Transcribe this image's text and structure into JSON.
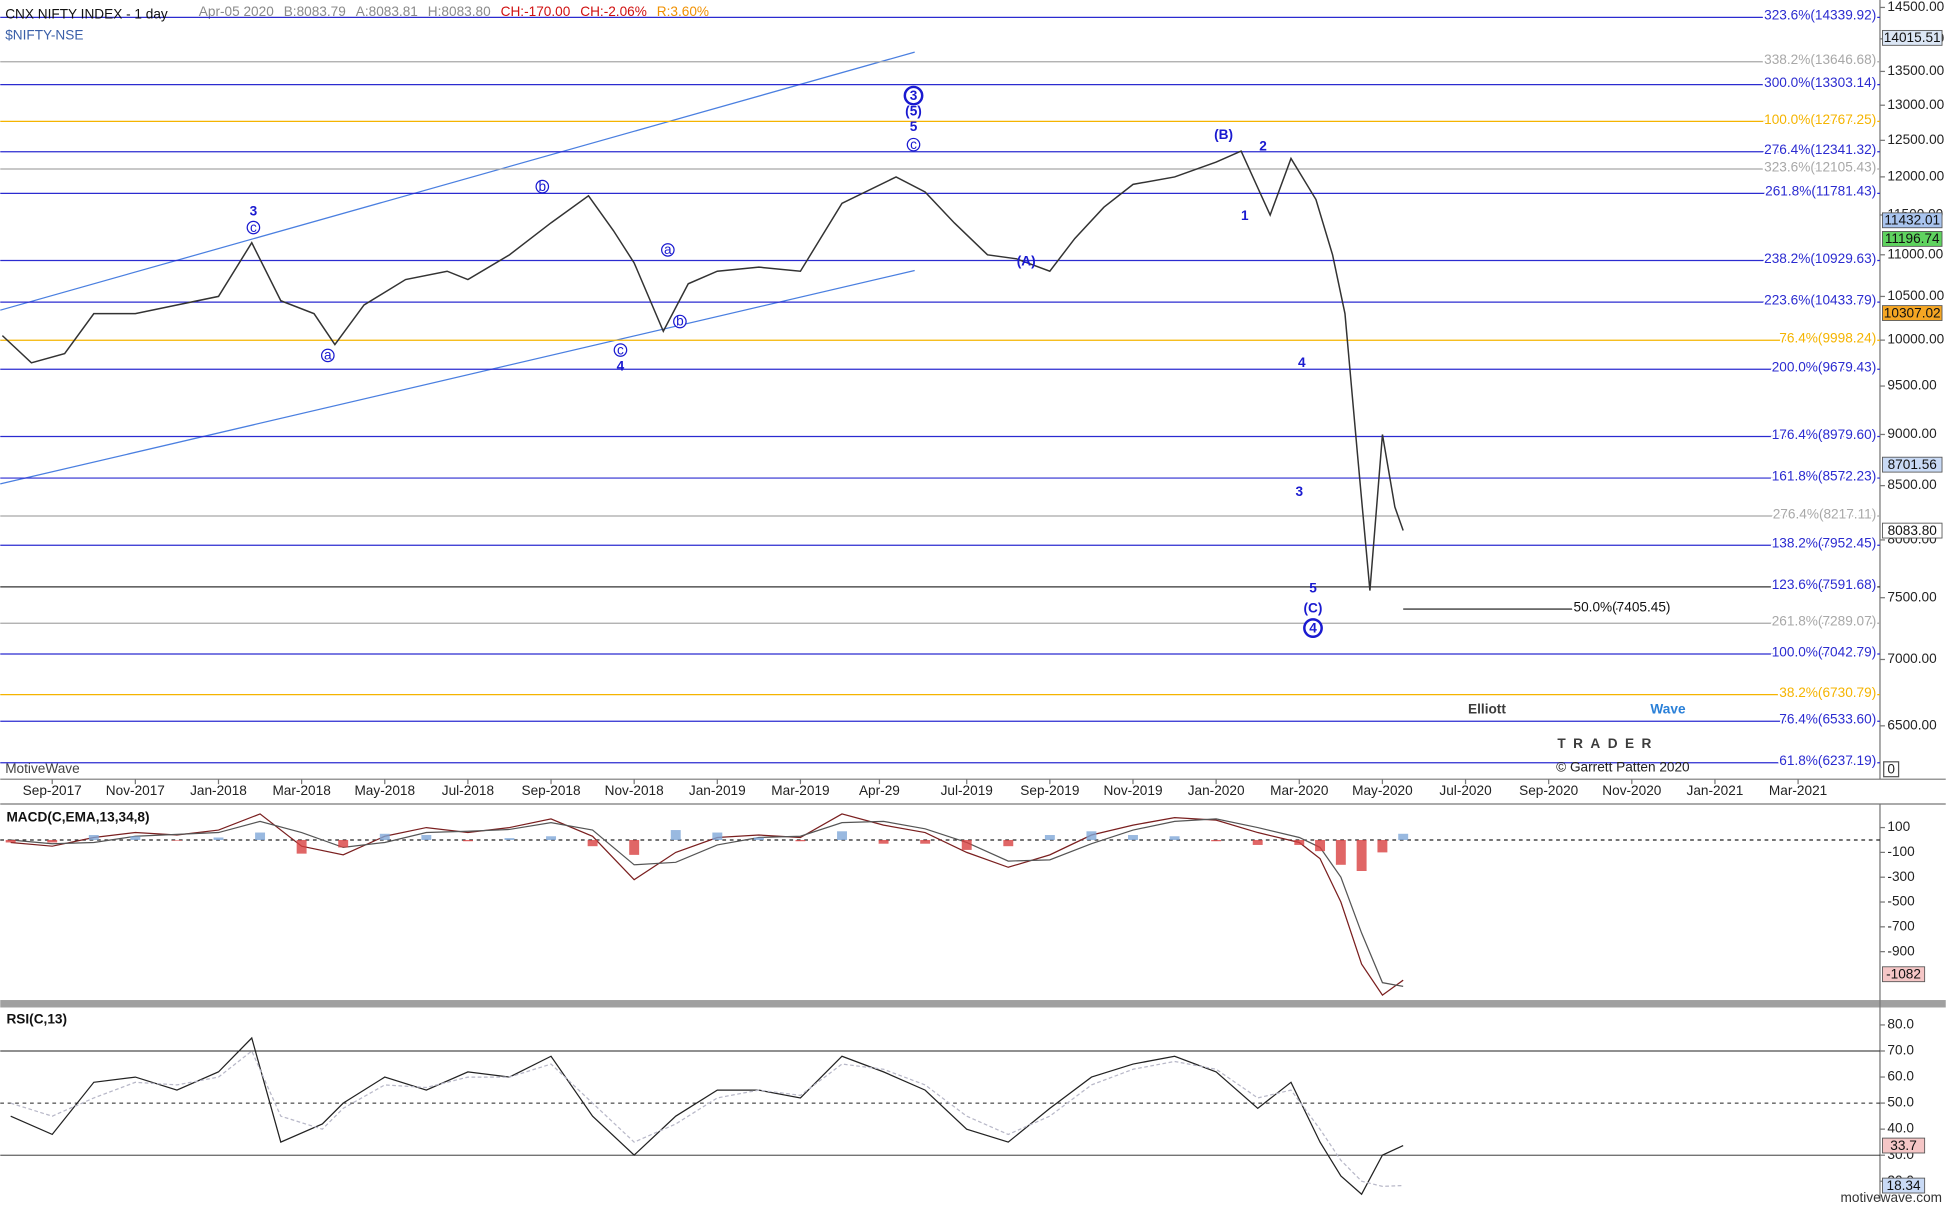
{
  "chart_data": [
    {
      "type": "line",
      "title": "CNX NIFTY INDEX - 1 day",
      "subtitle": "$NIFTY-NSE",
      "quote": [
        {
          "text": "Apr-05 2020",
          "color": "#8a8a8a"
        },
        {
          "text": "B:8083.79",
          "color": "#8a8a8a"
        },
        {
          "text": "A:8083.81",
          "color": "#8a8a8a"
        },
        {
          "text": "H:8083.80",
          "color": "#8a8a8a"
        },
        {
          "text": "CH:-170.00",
          "color": "#d01010"
        },
        {
          "text": "CH:-2.06%",
          "color": "#d01010"
        },
        {
          "text": "R:3.60%",
          "color": "#f09000"
        }
      ],
      "log_scale": true,
      "xlim": [
        6.75,
        51.97
      ],
      "ylim": [
        6124,
        14621
      ],
      "xticks": [
        {
          "value": 8,
          "label": "Sep-2017"
        },
        {
          "value": 10,
          "label": "Nov-2017"
        },
        {
          "value": 12,
          "label": "Jan-2018"
        },
        {
          "value": 14,
          "label": "Mar-2018"
        },
        {
          "value": 16,
          "label": "May-2018"
        },
        {
          "value": 18,
          "label": "Jul-2018"
        },
        {
          "value": 20,
          "label": "Sep-2018"
        },
        {
          "value": 22,
          "label": "Nov-2018"
        },
        {
          "value": 24,
          "label": "Jan-2019"
        },
        {
          "value": 26,
          "label": "Mar-2019"
        },
        {
          "value": 27.9,
          "label": "Apr-29"
        },
        {
          "value": 30,
          "label": "Jul-2019"
        },
        {
          "value": 32,
          "label": "Sep-2019"
        },
        {
          "value": 34,
          "label": "Nov-2019"
        },
        {
          "value": 36,
          "label": "Jan-2020"
        },
        {
          "value": 38,
          "label": "Mar-2020"
        },
        {
          "value": 40,
          "label": "May-2020"
        },
        {
          "value": 42,
          "label": "Jul-2020"
        },
        {
          "value": 44,
          "label": "Sep-2020"
        },
        {
          "value": 46,
          "label": "Nov-2020"
        },
        {
          "value": 48,
          "label": "Jan-2021"
        },
        {
          "value": 50,
          "label": "Mar-2021"
        }
      ],
      "yticks": [
        {
          "value": 14500,
          "label": "14500.00"
        },
        {
          "value": 14000,
          "label": "14000.00"
        },
        {
          "value": 13500,
          "label": "13500.00"
        },
        {
          "value": 13000,
          "label": "13000.00"
        },
        {
          "value": 12500,
          "label": "12500.00"
        },
        {
          "value": 12000,
          "label": "12000.00"
        },
        {
          "value": 11500,
          "label": "11500.00"
        },
        {
          "value": 11000,
          "label": "11000.00"
        },
        {
          "value": 10500,
          "label": "10500.00"
        },
        {
          "value": 10000,
          "label": "10000.00"
        },
        {
          "value": 9500,
          "label": "9500.00"
        },
        {
          "value": 9000,
          "label": "9000.00"
        },
        {
          "value": 8500,
          "label": "8500.00"
        },
        {
          "value": 8000,
          "label": "8000.00"
        },
        {
          "value": 7500,
          "label": "7500.00"
        },
        {
          "value": 7000,
          "label": "7000.00"
        },
        {
          "value": 6500,
          "label": "6500.00"
        }
      ],
      "axis_corner_label": "0",
      "series": [
        {
          "name": "NIFTY",
          "color": "#333333",
          "x": [
            6.8,
            7.5,
            8.3,
            9,
            10,
            11,
            12,
            12.8,
            13.5,
            14.3,
            14.8,
            15.5,
            16.5,
            17.5,
            18,
            19,
            20,
            20.9,
            21.5,
            22,
            22.7,
            23.3,
            24,
            25,
            26,
            27,
            28.3,
            29,
            29.7,
            30.5,
            31.2,
            32,
            32.6,
            33.3,
            34,
            35,
            36,
            36.6,
            37.3,
            37.8,
            38.4,
            38.8,
            39.1,
            39.4,
            39.7,
            40,
            40.3,
            40.5
          ],
          "values": [
            10050,
            9750,
            9850,
            10300,
            10300,
            10400,
            10500,
            11150,
            10450,
            10300,
            9950,
            10400,
            10700,
            10800,
            10700,
            11000,
            11400,
            11750,
            11300,
            10900,
            10100,
            10650,
            10800,
            10850,
            10800,
            11650,
            12000,
            11800,
            11400,
            11000,
            10950,
            10800,
            11200,
            11600,
            11900,
            12000,
            12200,
            12350,
            11500,
            12250,
            11700,
            11000,
            10300,
            8800,
            7560,
            9000,
            8300,
            8083.8
          ]
        }
      ],
      "levels": [
        {
          "label": "323.6%(14339.92)",
          "value": 14339.92,
          "color": "#2b2bd0"
        },
        {
          "label": "338.2%(13646.68)",
          "value": 13646.68,
          "color": "#a8a8a8"
        },
        {
          "label": "300.0%(13303.14)",
          "value": 13303.14,
          "color": "#2b2bd0"
        },
        {
          "label": "100.0%(12767.25)",
          "value": 12767.25,
          "color": "#f5b400"
        },
        {
          "label": "276.4%(12341.32)",
          "value": 12341.32,
          "color": "#2b2bd0"
        },
        {
          "label": "323.6%(12105.43)",
          "value": 12105.43,
          "color": "#a8a8a8"
        },
        {
          "label": "261.8%(11781.43)",
          "value": 11781.43,
          "color": "#2b2bd0"
        },
        {
          "label": "238.2%(10929.63)",
          "value": 10929.63,
          "color": "#2b2bd0"
        },
        {
          "label": "223.6%(10433.79)",
          "value": 10433.79,
          "color": "#2b2bd0"
        },
        {
          "label": "76.4%(9998.24)",
          "value": 9998.24,
          "color": "#f5b400"
        },
        {
          "label": "200.0%(9679.43)",
          "value": 9679.43,
          "color": "#2b2bd0"
        },
        {
          "label": "176.4%(8979.60)",
          "value": 8979.6,
          "color": "#2b2bd0"
        },
        {
          "label": "161.8%(8572.23)",
          "value": 8572.23,
          "color": "#2b2bd0"
        },
        {
          "label": "276.4%(8217.11)",
          "value": 8217.11,
          "color": "#a8a8a8"
        },
        {
          "label": "138.2%(7952.45)",
          "value": 7952.45,
          "color": "#2b2bd0"
        },
        {
          "label": "123.6%(7591.68)",
          "value": 7591.68,
          "color": "#2b2bd0",
          "line_color": "#333333"
        },
        {
          "label": "50.0%(7405.45)",
          "value": 7405.45,
          "color": "#111111",
          "short": true
        },
        {
          "label": "261.8%(7289.07)",
          "value": 7289.07,
          "color": "#a8a8a8"
        },
        {
          "label": "100.0%(7042.79)",
          "value": 7042.79,
          "color": "#2b2bd0"
        },
        {
          "label": "38.2%(6730.79)",
          "value": 6730.79,
          "color": "#f5b400"
        },
        {
          "label": "76.4%(6533.60)",
          "value": 6533.6,
          "color": "#2b2bd0"
        },
        {
          "label": "61.8%(6237.19)",
          "value": 6237.19,
          "color": "#2b2bd0"
        }
      ],
      "price_tags": [
        {
          "value": 14015.51,
          "label": "14015.51",
          "color": "#dbe6f5"
        },
        {
          "value": 11432.01,
          "label": "11432.01",
          "color": "#a9c4ee"
        },
        {
          "value": 11196.74,
          "label": "11196.74",
          "color": "#5fd35f"
        },
        {
          "value": 10307.02,
          "label": "10307.02",
          "color": "#f5a623"
        },
        {
          "value": 8701.56,
          "label": "8701.56",
          "color": "#c9daf5"
        },
        {
          "value": 8083.8,
          "label": "8083.80",
          "color": "#ffffff"
        }
      ],
      "annotations": [
        {
          "text": "3",
          "x": 12.84,
          "y": 11550
        },
        {
          "text": "c",
          "x": 12.84,
          "y": 11340,
          "circle": "small"
        },
        {
          "text": "a",
          "x": 14.63,
          "y": 9830,
          "circle": "small"
        },
        {
          "text": "b",
          "x": 19.79,
          "y": 11870,
          "circle": "small"
        },
        {
          "text": "c",
          "x": 21.67,
          "y": 9890,
          "circle": "small"
        },
        {
          "text": "4",
          "x": 21.67,
          "y": 9710
        },
        {
          "text": "a",
          "x": 22.81,
          "y": 11060,
          "circle": "small"
        },
        {
          "text": "b",
          "x": 23.1,
          "y": 10210,
          "circle": "small"
        },
        {
          "text": "3",
          "x": 28.72,
          "y": 13140,
          "circle": "large"
        },
        {
          "text": "(5)",
          "x": 28.72,
          "y": 12910
        },
        {
          "text": "5",
          "x": 28.72,
          "y": 12690
        },
        {
          "text": "c",
          "x": 28.72,
          "y": 12440,
          "circle": "small"
        },
        {
          "text": "(A)",
          "x": 31.43,
          "y": 10920
        },
        {
          "text": "(B)",
          "x": 36.18,
          "y": 12580
        },
        {
          "text": "1",
          "x": 36.69,
          "y": 11490
        },
        {
          "text": "2",
          "x": 37.13,
          "y": 12420
        },
        {
          "text": "4",
          "x": 38.06,
          "y": 9750
        },
        {
          "text": "3",
          "x": 38.0,
          "y": 8440
        },
        {
          "text": "5",
          "x": 38.33,
          "y": 7580
        },
        {
          "text": "(C)",
          "x": 38.33,
          "y": 7410
        },
        {
          "text": "4",
          "x": 38.33,
          "y": 7250,
          "circle": "large"
        }
      ],
      "footer_left": "MotiveWave",
      "copyright": "© Garrett Patten 2020",
      "logo": {
        "word1": "Elliott",
        "word2": "Wave",
        "word3": "TRADER"
      }
    },
    {
      "type": "macd",
      "title": "MACD(C,EMA,13,34,8)",
      "xlim": [
        6.75,
        51.97
      ],
      "ylim": [
        -1290,
        270
      ],
      "yticks": [
        100,
        -100,
        -300,
        -500,
        -700,
        -900
      ],
      "zero_line": true,
      "x": [
        7,
        8,
        9,
        10,
        11,
        12,
        13,
        14,
        15,
        16,
        17,
        18,
        19,
        20,
        21,
        22,
        23,
        24,
        25,
        26,
        27,
        28,
        29,
        30,
        31,
        32,
        33,
        34,
        35,
        36,
        37,
        38,
        38.5,
        39,
        39.5,
        40,
        40.5
      ],
      "series": [
        {
          "name": "MACD",
          "color": "#7a1f1f",
          "values": [
            -20,
            -50,
            20,
            60,
            40,
            80,
            210,
            -50,
            -120,
            30,
            100,
            60,
            100,
            170,
            30,
            -320,
            -100,
            20,
            40,
            20,
            210,
            120,
            60,
            -100,
            -220,
            -120,
            40,
            120,
            180,
            160,
            60,
            -20,
            -150,
            -500,
            -1000,
            -1250,
            -1130
          ]
        },
        {
          "name": "Signal",
          "color": "#555555",
          "values": [
            0,
            -30,
            -20,
            30,
            45,
            60,
            150,
            60,
            -60,
            -20,
            60,
            70,
            85,
            140,
            80,
            -200,
            -180,
            -40,
            20,
            30,
            140,
            150,
            90,
            -20,
            -170,
            -160,
            -30,
            80,
            150,
            170,
            100,
            20,
            -60,
            -300,
            -750,
            -1150,
            -1180
          ]
        },
        {
          "name": "Histogram",
          "color": "#7fa8d8",
          "negative_color": "#d84040",
          "bars": true,
          "values": [
            -20,
            -20,
            40,
            30,
            -5,
            20,
            60,
            -110,
            -60,
            50,
            40,
            -10,
            15,
            30,
            -50,
            -120,
            80,
            60,
            20,
            -10,
            70,
            -30,
            -30,
            -80,
            -50,
            40,
            70,
            40,
            30,
            -10,
            -40,
            -40,
            -90,
            -200,
            -250,
            -100,
            50
          ]
        }
      ],
      "tags": [
        {
          "value": -1082,
          "color": "#f5c6c6"
        }
      ]
    },
    {
      "type": "rsi",
      "title": "RSI(C,13)",
      "xlim": [
        6.75,
        51.97
      ],
      "ylim": [
        12.4,
        86.7
      ],
      "yticks": [
        {
          "value": 80,
          "label": "80.0"
        },
        {
          "value": 70,
          "label": "70.0"
        },
        {
          "value": 60,
          "label": "60.0"
        },
        {
          "value": 50,
          "label": "50.0"
        },
        {
          "value": 40,
          "label": "40.0"
        },
        {
          "value": 30,
          "label": "30.0"
        },
        {
          "value": 20,
          "label": "20.0"
        }
      ],
      "levels": [
        70,
        50,
        30
      ],
      "x": [
        7,
        8,
        9,
        10,
        11,
        12,
        12.8,
        13.5,
        14.5,
        15,
        16,
        17,
        18,
        19,
        20,
        21,
        22,
        23,
        24,
        25,
        26,
        27,
        28,
        29,
        30,
        31,
        32,
        33,
        34,
        35,
        36,
        37,
        37.8,
        38.5,
        39,
        39.5,
        40,
        40.5
      ],
      "series": [
        {
          "name": "RSI",
          "color": "#222222",
          "values": [
            45,
            38,
            58,
            60,
            55,
            62,
            75,
            35,
            42,
            50,
            60,
            55,
            62,
            60,
            68,
            45,
            30,
            45,
            55,
            55,
            52,
            68,
            62,
            55,
            40,
            35,
            48,
            60,
            65,
            68,
            62,
            48,
            58,
            35,
            22,
            15,
            30,
            33.7
          ]
        },
        {
          "name": "RSI2",
          "color": "#b8b8c8",
          "dashed": true,
          "values": [
            50,
            45,
            52,
            58,
            57,
            60,
            70,
            45,
            40,
            48,
            57,
            56,
            60,
            60,
            65,
            50,
            35,
            42,
            52,
            55,
            53,
            65,
            63,
            57,
            45,
            38,
            45,
            57,
            63,
            66,
            63,
            52,
            55,
            40,
            28,
            20,
            18,
            18.34
          ]
        }
      ],
      "tags": [
        {
          "value": 33.7,
          "label": "33.7",
          "color": "#f5c6c6"
        },
        {
          "value": 18.34,
          "label": "18.34",
          "color": "#c9daf5"
        }
      ]
    }
  ],
  "site": "motivewave.com"
}
